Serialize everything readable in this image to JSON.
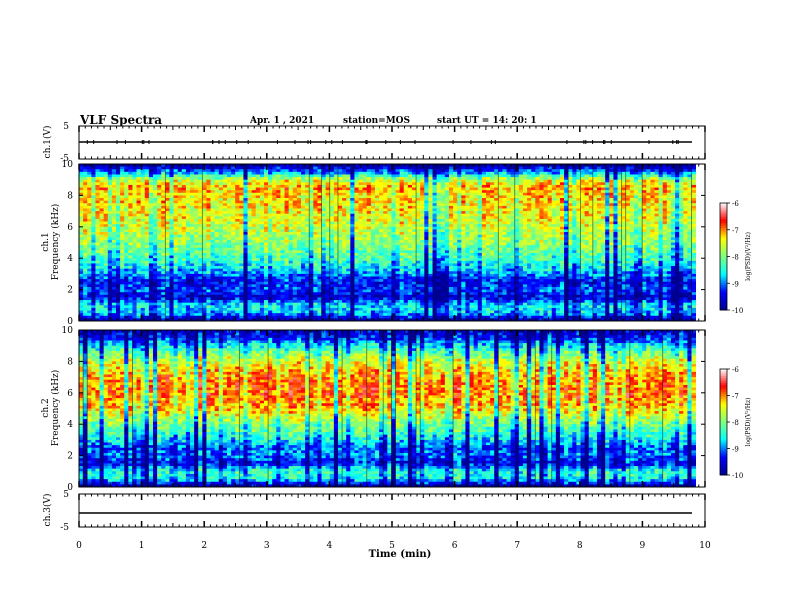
{
  "header": {
    "title": "VLF Spectra",
    "date": "Apr. 1 , 2021",
    "station": "station=MOS",
    "start": "start UT = 14: 20: 1"
  },
  "colors": {
    "jet": [
      "#00008f",
      "#0000ff",
      "#00ffff",
      "#7fff7f",
      "#ffff00",
      "#ff0000",
      "#ffffff"
    ]
  },
  "chart_data": [
    {
      "type": "line",
      "panel": "ch1-waveform",
      "ylabel": "ch.1(V)",
      "ylim": [
        -5,
        5
      ],
      "yticks": [
        "5",
        "-5"
      ],
      "x": [
        0,
        10
      ],
      "values": [
        0,
        0
      ]
    },
    {
      "type": "heatmap",
      "panel": "ch1-spectrogram",
      "ylabel": "ch.1 Frequency (kHz)",
      "ylim": [
        0,
        10
      ],
      "yticks": [
        "0",
        "2",
        "4",
        "6",
        "8",
        "10"
      ],
      "xlim": [
        0,
        9.85
      ],
      "profile_freq_khz": [
        0,
        0.5,
        1,
        1.5,
        2,
        2.5,
        3,
        4,
        5,
        6,
        7,
        8,
        8.5,
        9,
        9.5,
        10
      ],
      "profile_logpsd": [
        -10,
        -8.8,
        -8.6,
        -9.6,
        -9.2,
        -9.4,
        -8.9,
        -8.3,
        -7.9,
        -7.6,
        -7.4,
        -7.3,
        -7.1,
        -7.6,
        -9.0,
        -10
      ]
    },
    {
      "type": "heatmap",
      "panel": "ch2-spectrogram",
      "ylabel": "ch.2 Frequency (kHz)",
      "ylim": [
        0,
        10
      ],
      "yticks": [
        "0",
        "2",
        "4",
        "6",
        "8",
        "10"
      ],
      "xlim": [
        0,
        9.85
      ],
      "profile_freq_khz": [
        0,
        0.5,
        1,
        1.5,
        2,
        2.5,
        3,
        4,
        5,
        6,
        7,
        8,
        8.5,
        9,
        9.5,
        10
      ],
      "profile_logpsd": [
        -10,
        -8.6,
        -8.4,
        -9.4,
        -9.0,
        -9.1,
        -8.6,
        -8.0,
        -7.2,
        -6.9,
        -7.0,
        -7.5,
        -8.0,
        -8.6,
        -9.3,
        -9.6
      ]
    },
    {
      "type": "line",
      "panel": "ch3-waveform",
      "ylabel": "ch.3(V)",
      "ylim": [
        -5,
        5
      ],
      "yticks": [
        "5",
        "-5"
      ],
      "x": [
        0,
        10
      ],
      "values": [
        0,
        0
      ]
    }
  ],
  "time_axis": {
    "xlabel": "Time (min)",
    "xlim": [
      0,
      10
    ],
    "ticks": [
      "0",
      "1",
      "2",
      "3",
      "4",
      "5",
      "6",
      "7",
      "8",
      "9",
      "10"
    ]
  },
  "colorbars": [
    {
      "label": "log(PSD)(V²/Hz)",
      "range": [
        -10,
        -6
      ],
      "ticks": [
        "-6",
        "-7",
        "-8",
        "-9",
        "-10"
      ]
    },
    {
      "label": "log(PSD)(V²/Hz)",
      "range": [
        -10,
        -6
      ],
      "ticks": [
        "-6",
        "-7",
        "-8",
        "-9",
        "-10"
      ]
    }
  ]
}
